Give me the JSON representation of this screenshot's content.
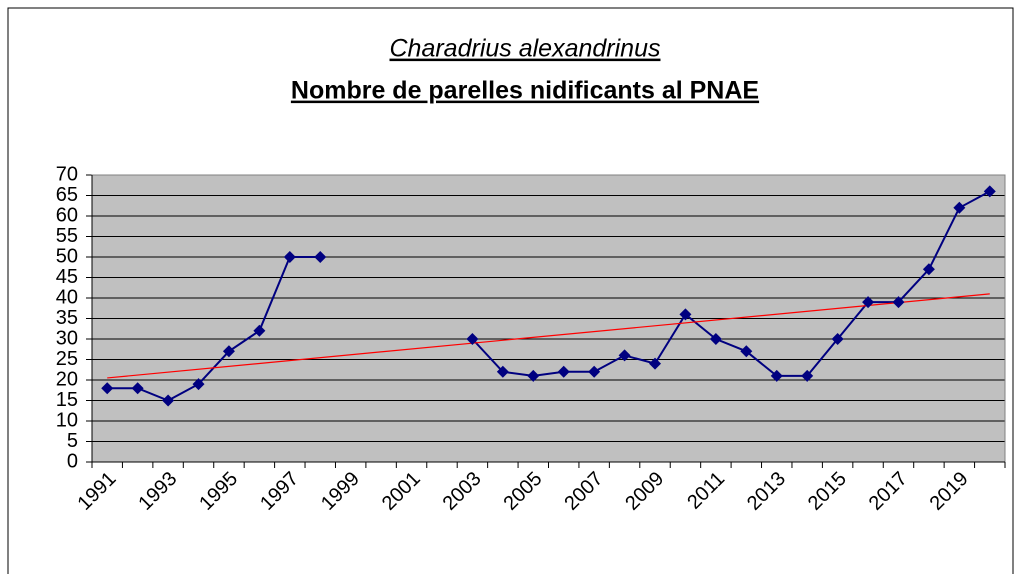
{
  "chart_data": {
    "type": "line",
    "title": "Charadrius alexandrinus",
    "subtitle": "Nombre de parelles nidificants al PNAE",
    "categories": [
      "1991",
      null,
      "1993",
      null,
      "1995",
      null,
      "1997",
      null,
      "1999",
      null,
      "2001",
      null,
      "2003",
      null,
      "2005",
      null,
      "2007",
      null,
      "2009",
      null,
      "2011",
      null,
      "2013",
      null,
      "2015",
      null,
      "2017",
      null,
      "2019",
      null
    ],
    "series": [
      {
        "name": "Charadrius alexandrinus",
        "color": "#000080",
        "values": [
          18,
          18,
          15,
          19,
          27,
          32,
          50,
          50,
          null,
          null,
          null,
          null,
          30,
          22,
          21,
          22,
          22,
          26,
          24,
          36,
          30,
          27,
          21,
          21,
          30,
          39,
          39,
          47,
          62,
          66
        ]
      }
    ],
    "trendline": {
      "color": "#ff0000",
      "values": [
        20.5,
        41
      ]
    },
    "ylim": [
      0,
      70
    ],
    "yticks": [
      0,
      5,
      10,
      15,
      20,
      25,
      30,
      35,
      40,
      45,
      50,
      55,
      60,
      65,
      70
    ],
    "grid": true,
    "plot_background": "#c0c0c0"
  }
}
